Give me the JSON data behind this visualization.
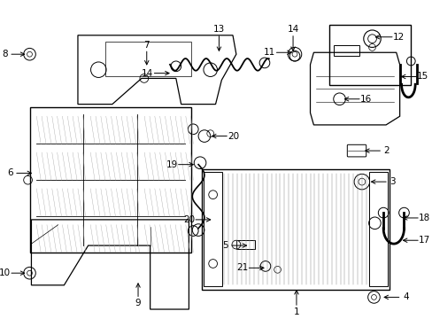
{
  "bg_color": "#ffffff",
  "line_color": "#000000",
  "label_data": [
    [
      1,
      332,
      330,
      0,
      18
    ],
    [
      2,
      408,
      172,
      18,
      0
    ],
    [
      3,
      415,
      208,
      18,
      0
    ],
    [
      4,
      430,
      342,
      18,
      0
    ],
    [
      5,
      278,
      282,
      -18,
      0
    ],
    [
      6,
      28,
      198,
      -18,
      0
    ],
    [
      7,
      158,
      76,
      0,
      -16
    ],
    [
      8,
      20,
      60,
      -16,
      0
    ],
    [
      9,
      148,
      322,
      0,
      16
    ],
    [
      10,
      20,
      314,
      -16,
      0
    ],
    [
      11,
      330,
      58,
      -18,
      0
    ],
    [
      12,
      420,
      40,
      20,
      0
    ],
    [
      13,
      242,
      60,
      0,
      -18
    ],
    [
      14,
      188,
      82,
      -18,
      0
    ],
    [
      14,
      328,
      60,
      0,
      -18
    ],
    [
      15,
      450,
      86,
      18,
      0
    ],
    [
      16,
      384,
      112,
      18,
      0
    ],
    [
      17,
      452,
      276,
      18,
      0
    ],
    [
      18,
      452,
      250,
      18,
      0
    ],
    [
      19,
      216,
      188,
      -18,
      0
    ],
    [
      20,
      230,
      155,
      18,
      0
    ],
    [
      20,
      236,
      252,
      -18,
      0
    ],
    [
      21,
      298,
      308,
      -18,
      0
    ]
  ]
}
